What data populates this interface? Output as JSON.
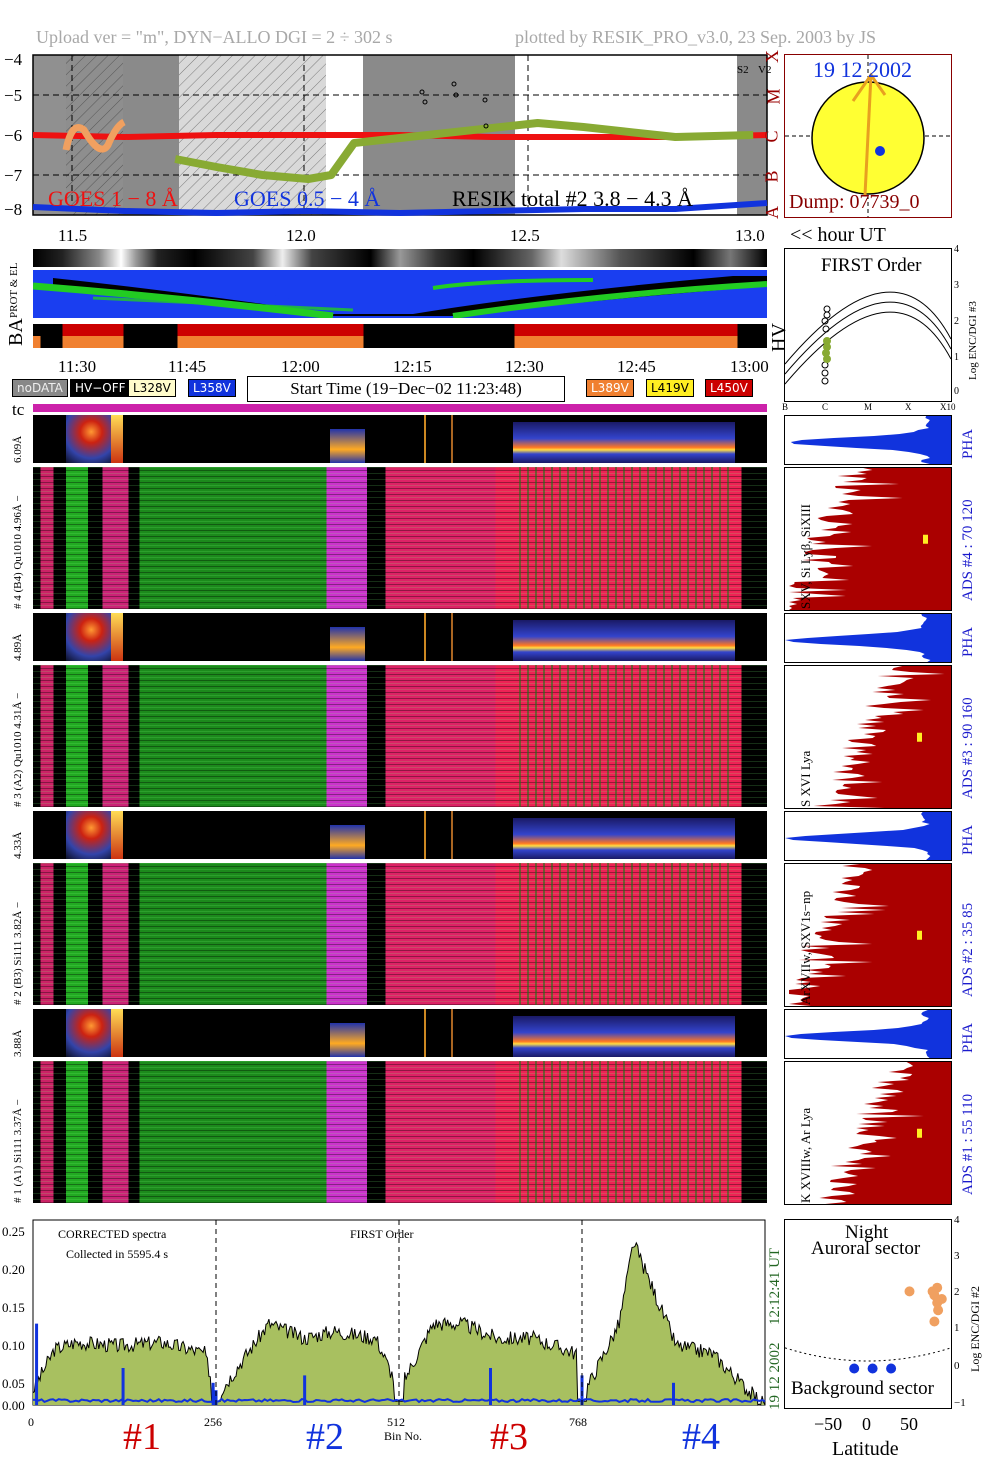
{
  "header": {
    "left": "Upload ver = \"m\", DYN−ALLO DGI =   2 ÷ 302 s",
    "right": "plotted by RESIK_PRO_v3.0, 23 Sep. 2003 by JS"
  },
  "goes_panel": {
    "yticks": [
      "−4",
      "−5",
      "−6",
      "−7",
      "−8"
    ],
    "class_letters": [
      "X",
      "M",
      "C",
      "B",
      "A"
    ],
    "s_label": "S2",
    "v_label": "V2",
    "legend_goes1": "GOES 1 − 8 Å",
    "legend_goes05": "GOES 0.5 − 4 Å",
    "legend_resik": "RESIK total #2  3.8 − 4.3 Å",
    "xticks": [
      "11.5",
      "12.0",
      "12.5",
      "13.0"
    ],
    "xunit": "<< hour UT",
    "colors": {
      "goes1": "#ee1111",
      "goes05": "#1133dd",
      "resik": "#88aa33",
      "early": "#f0a060"
    }
  },
  "sun": {
    "date": "19 12 2002",
    "dump": "Dump: 07739_0"
  },
  "orbit": {
    "prot_label": "PROT & EL",
    "ba_label": "BA",
    "hv_label": "HV"
  },
  "first_order": {
    "title": "FIRST Order",
    "ylabel": "Log ENC/DGI #3",
    "yticks": [
      "4",
      "3",
      "2",
      "1",
      "0"
    ],
    "xticks": [
      "B",
      "C",
      "M",
      "X",
      "X10"
    ]
  },
  "time_axis": {
    "ticks": [
      "11:30",
      "11:45",
      "12:00",
      "12:15",
      "12:30",
      "12:45",
      "13:00"
    ]
  },
  "legend": {
    "nodata": "noDATA",
    "hvoff": "HV−OFF",
    "l328": "L328V",
    "l358": "L358V",
    "start": "Start Time (19−Dec−02 11:23:48)",
    "l389": "L389V",
    "l419": "L419V",
    "l450": "L450V"
  },
  "tc_label": "tc",
  "channels": [
    {
      "pha_label": "6.09Å",
      "main_label": "# 4 (B4)  Qu1010  4.96Å −",
      "line_label": "SXV, Si Lyβ, SiXIII",
      "ads_label": "ADS #4 :   70 120",
      "pha": "PHA"
    },
    {
      "pha_label": "4.89Å",
      "main_label": "# 3 (A2)  Qu1010  4.31Å −",
      "line_label": "S XVI Lya",
      "ads_label": "ADS #3 :   90 160",
      "pha": "PHA"
    },
    {
      "pha_label": "4.33Å",
      "main_label": "# 2 (B3)  Si111  3.82Å −",
      "line_label": "ArXVIIw, SXV1s−np",
      "ads_label": "ADS #2 :   35  85",
      "pha": "PHA"
    },
    {
      "pha_label": "3.88Å",
      "main_label": "# 1 (A1)  Si111  3.37Å −",
      "line_label": "K XVIIIw, Ar Lya",
      "ads_label": "ADS #1 :   55 110",
      "pha": "PHA"
    }
  ],
  "spectrum": {
    "title1": "CORRECTED spectra",
    "title2": "Collected in  5595.4 s",
    "title3": "FIRST Order",
    "yticks": [
      "0.25",
      "0.20",
      "0.15",
      "0.10",
      "0.05",
      "0.00"
    ],
    "xticks": [
      "0",
      "256",
      "512",
      "768"
    ],
    "xlabel": "Bin No.",
    "time_label": "12:12:41 UT",
    "date_label": "19 12 2002",
    "sections": [
      "#1",
      "#2",
      "#3",
      "#4"
    ]
  },
  "latitude": {
    "night": "Night",
    "auroral": "Auroral sector",
    "background": "Background sector",
    "xlabel": "Latitude",
    "xticks": [
      "−50",
      "0",
      "50"
    ],
    "ylabel": "Log ENC/DGI #2",
    "yticks": [
      "4",
      "3",
      "2",
      "1",
      "0",
      "−1"
    ]
  },
  "chart_data": [
    {
      "type": "line",
      "title": "",
      "xlabel": "<< hour UT",
      "ylabel": "",
      "xlim": [
        11.4,
        13.0
      ],
      "ylim": [
        -8,
        -4
      ],
      "series": [
        {
          "name": "GOES 1 − 8 Å",
          "x": [
            11.4,
            11.6,
            11.8,
            12.0,
            12.2,
            12.4,
            12.6,
            12.8,
            13.0
          ],
          "values": [
            -6.0,
            -6.05,
            -6.0,
            -6.0,
            -6.0,
            -6.05,
            -6.05,
            -6.05,
            -6.0
          ]
        },
        {
          "name": "GOES 0.5 − 4 Å",
          "x": [
            11.4,
            11.6,
            11.8,
            12.0,
            12.2,
            12.4,
            12.6,
            12.8,
            13.0
          ],
          "values": [
            -7.8,
            -7.9,
            -7.95,
            -7.9,
            -7.95,
            -7.9,
            -7.85,
            -7.85,
            -7.7
          ]
        },
        {
          "name": "RESIK total #2  3.8 − 4.3 Å",
          "x": [
            11.71,
            11.8,
            11.9,
            12.0,
            12.05,
            12.1,
            12.5,
            12.6,
            12.8,
            12.97
          ],
          "values": [
            -6.6,
            -6.8,
            -7.0,
            -7.1,
            -7.0,
            -6.2,
            -5.7,
            -5.8,
            -6.05,
            -6.0
          ]
        }
      ]
    },
    {
      "type": "area",
      "title": "CORRECTED spectra",
      "xlabel": "Bin No.",
      "ylabel": "",
      "xlim": [
        0,
        1024
      ],
      "ylim": [
        0,
        0.25
      ],
      "categories": [
        "#1",
        "#2",
        "#3",
        "#4"
      ],
      "series": [
        {
          "name": "",
          "x": [
            0,
            30,
            60,
            120,
            180,
            240,
            256,
            300,
            330,
            380,
            420,
            480,
            512,
            560,
            600,
            650,
            700,
            760,
            768,
            820,
            840,
            900,
            950,
            1000,
            1024
          ],
          "values": [
            0.02,
            0.075,
            0.085,
            0.08,
            0.085,
            0.07,
            0.01,
            0.07,
            0.11,
            0.09,
            0.1,
            0.09,
            0.02,
            0.11,
            0.11,
            0.09,
            0.09,
            0.07,
            0.01,
            0.11,
            0.22,
            0.08,
            0.07,
            0.02,
            0.0
          ]
        }
      ]
    },
    {
      "type": "scatter",
      "title": "",
      "xlabel": "Latitude",
      "ylabel": "Log ENC/DGI #2",
      "xlim": [
        -90,
        90
      ],
      "ylim": [
        -1,
        4
      ],
      "series": [
        {
          "name": "Auroral sector",
          "x": [
            45,
            72,
            75,
            80,
            72,
            76,
            70,
            75
          ],
          "values": [
            2.1,
            2.0,
            1.8,
            1.9,
            1.3,
            1.6,
            2.1,
            2.2
          ]
        },
        {
          "name": "Background sector",
          "x": [
            -15,
            5,
            25
          ],
          "values": [
            0.05,
            0.05,
            0.05
          ]
        }
      ]
    }
  ]
}
